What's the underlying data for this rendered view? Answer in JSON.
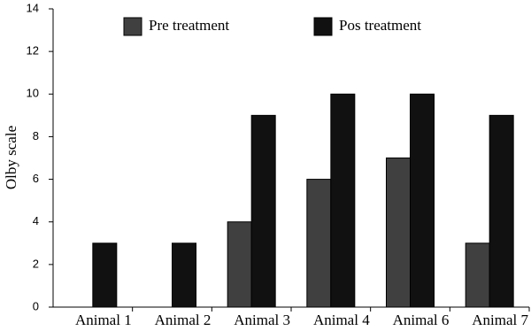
{
  "chart_data": {
    "type": "bar",
    "y_label": "Olby scale",
    "categories": [
      "Animal 1",
      "Animal 2",
      "Animal 3",
      "Animal 4",
      "Animal 6",
      "Animal 7"
    ],
    "series": [
      {
        "name": "Pre treatment",
        "color": "#404040",
        "values": [
          0,
          0,
          4,
          6,
          7,
          3
        ]
      },
      {
        "name": "Pos treatment",
        "color": "#111111",
        "values": [
          3,
          3,
          9,
          10,
          10,
          9
        ]
      }
    ],
    "ylim": [
      0,
      14
    ],
    "yticks": [
      0,
      2,
      4,
      6,
      8,
      10,
      12,
      14
    ],
    "legend": "top"
  }
}
